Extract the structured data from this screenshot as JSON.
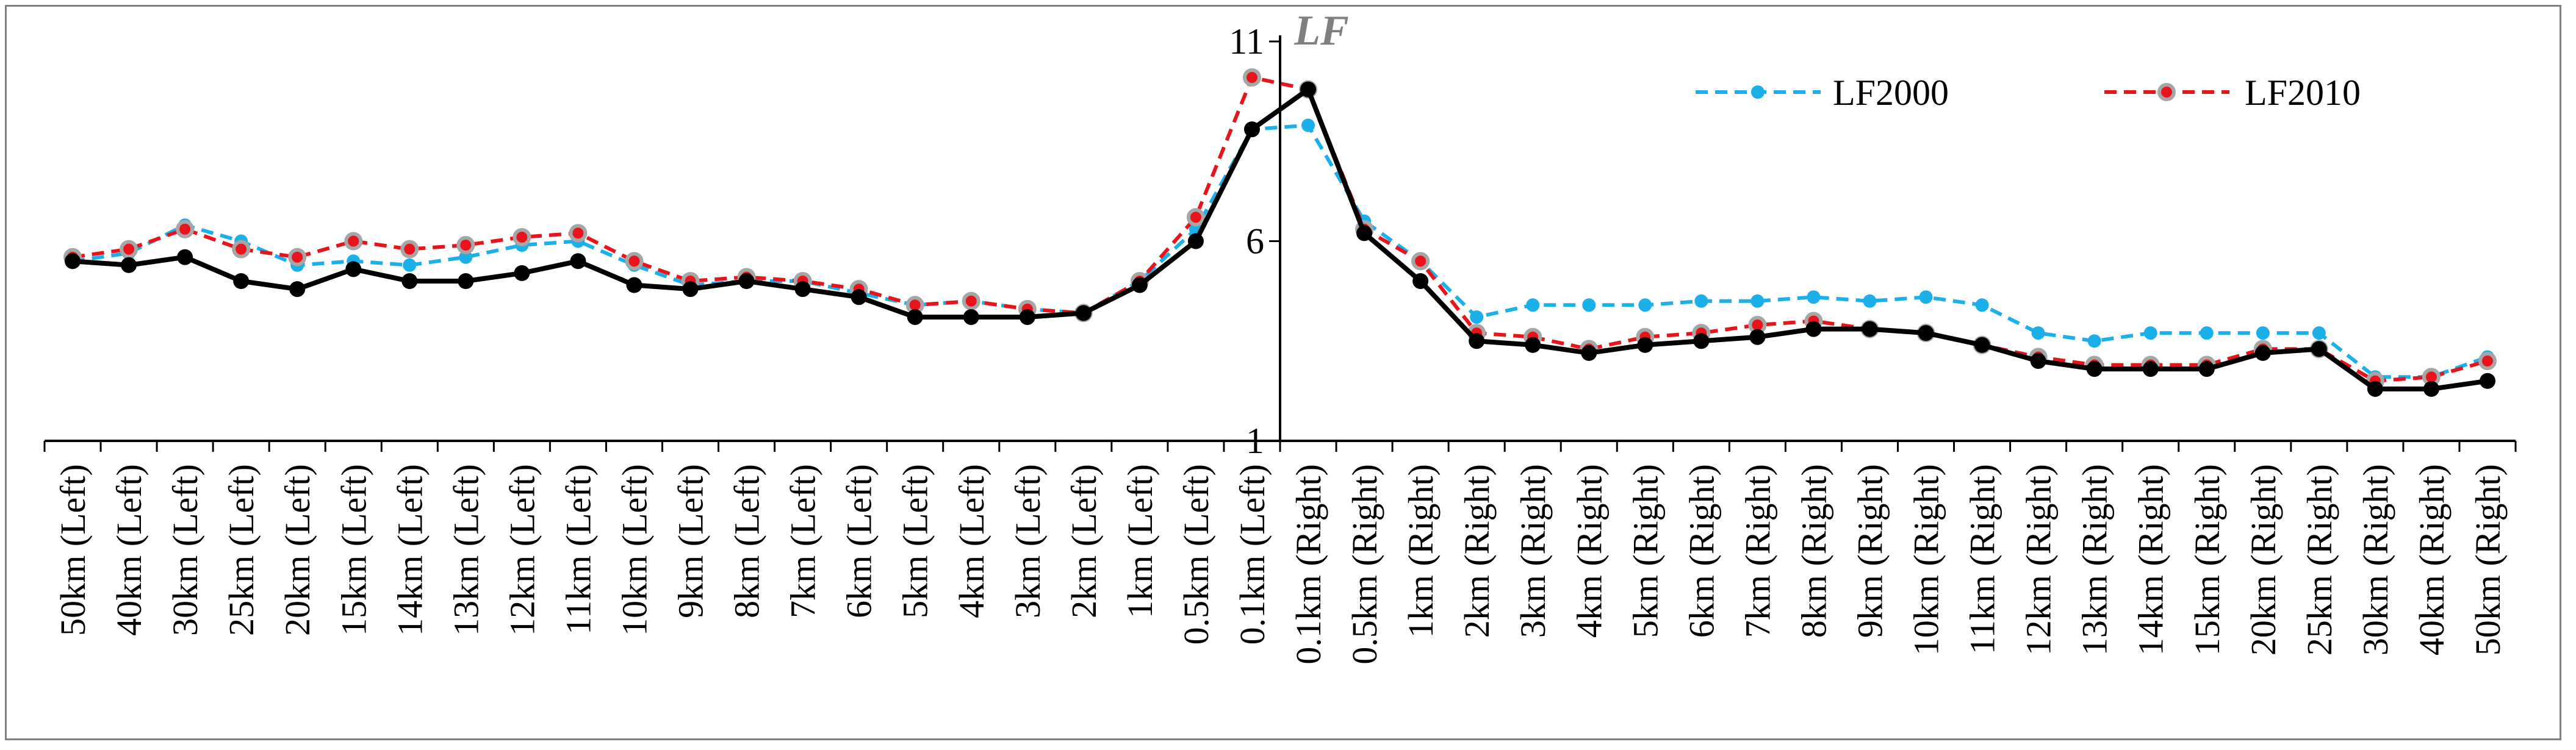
{
  "chart_data": {
    "type": "line",
    "title": "",
    "xlabel": "",
    "ylabel": "LF",
    "ylim": [
      1,
      11
    ],
    "yticks": [
      1,
      6,
      11
    ],
    "grid": false,
    "legend_position": "top-right",
    "categories": [
      "50km (Left)",
      "40km (Left)",
      "30km (Left)",
      "25km (Left)",
      "20km (Left)",
      "15km (Left)",
      "14km (Left)",
      "13km (Left)",
      "12km (Left)",
      "11km (Left)",
      "10km (Left)",
      "9km (Left)",
      "8km (Left)",
      "7km (Left)",
      "6km (Left)",
      "5km (Left)",
      "4km (Left)",
      "3km (Left)",
      "2km (Left)",
      "1km (Left)",
      "0.5km (Left)",
      "0.1km (Left)",
      "0.1km (Right)",
      "0.5km (Right)",
      "1km (Right)",
      "2km (Right)",
      "3km (Right)",
      "4km (Right)",
      "5km (Right)",
      "6km (Right)",
      "7km (Right)",
      "8km (Right)",
      "9km (Right)",
      "10km (Right)",
      "11km (Right)",
      "12km (Right)",
      "13km (Right)",
      "14km (Right)",
      "15km (Right)",
      "20km (Right)",
      "25km (Right)",
      "30km (Right)",
      "40km (Right)",
      "50km (Right)"
    ],
    "series": [
      {
        "name": "LF2000",
        "color": "#1CB0EA",
        "style": "dashed",
        "marker": "circle",
        "values": [
          5.5,
          5.7,
          6.4,
          6.0,
          5.4,
          5.5,
          5.4,
          5.6,
          5.9,
          6.0,
          5.4,
          4.9,
          5.0,
          5.0,
          4.7,
          4.4,
          4.5,
          4.3,
          4.2,
          5.0,
          6.3,
          8.8,
          8.9,
          6.5,
          5.5,
          4.1,
          4.4,
          4.4,
          4.4,
          4.5,
          4.5,
          4.6,
          4.5,
          4.6,
          4.4,
          3.7,
          3.5,
          3.7,
          3.7,
          3.7,
          3.7,
          2.6,
          2.6,
          3.1
        ]
      },
      {
        "name": "LF2010",
        "color": "#E8141B",
        "style": "dashed",
        "marker": "circle-gray",
        "values": [
          5.6,
          5.8,
          6.3,
          5.8,
          5.6,
          6.0,
          5.8,
          5.9,
          6.1,
          6.2,
          5.5,
          5.0,
          5.1,
          5.0,
          4.8,
          4.4,
          4.5,
          4.3,
          4.2,
          5.0,
          6.6,
          10.1,
          9.8,
          6.3,
          5.5,
          3.7,
          3.6,
          3.3,
          3.6,
          3.7,
          3.9,
          4.0,
          3.8,
          3.7,
          3.4,
          3.1,
          2.9,
          2.9,
          2.9,
          3.3,
          3.3,
          2.5,
          2.6,
          3.0
        ]
      },
      {
        "color": "#000000",
        "style": "solid",
        "marker": "circle",
        "values": [
          5.5,
          5.4,
          5.6,
          5.0,
          4.8,
          5.3,
          5.0,
          5.0,
          5.2,
          5.5,
          4.9,
          4.8,
          5.0,
          4.8,
          4.6,
          4.1,
          4.1,
          4.1,
          4.2,
          4.9,
          6.0,
          8.8,
          9.8,
          6.2,
          5.0,
          3.5,
          3.4,
          3.2,
          3.4,
          3.5,
          3.6,
          3.8,
          3.8,
          3.7,
          3.4,
          3.0,
          2.8,
          2.8,
          2.8,
          3.2,
          3.3,
          2.3,
          2.3,
          2.5
        ]
      }
    ]
  }
}
